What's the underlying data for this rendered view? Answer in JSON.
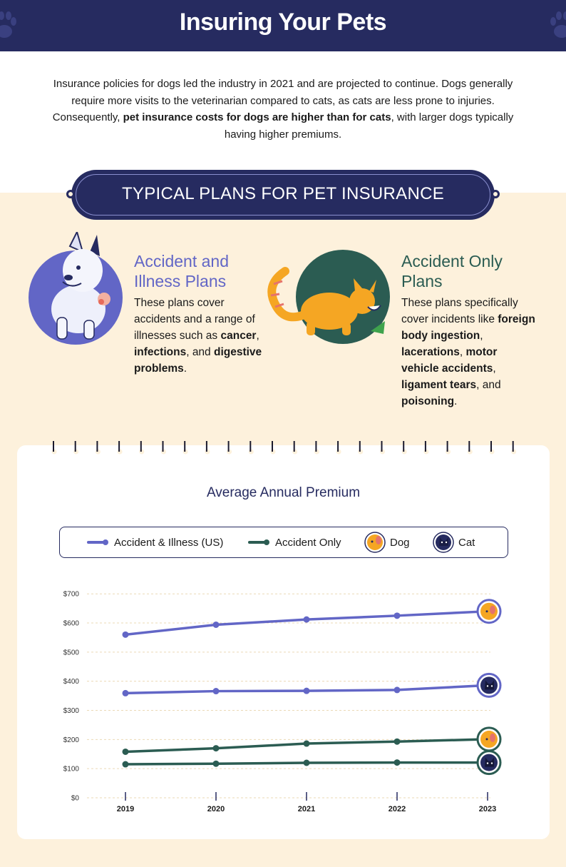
{
  "header": {
    "title": "Insuring Your Pets"
  },
  "intro": {
    "part1": "Insurance policies for dogs led the industry in 2021 and are projected to continue. Dogs generally require more visits to the veterinarian compared to cats, as cats are less prone to injuries. Consequently, ",
    "bold": "pet insurance costs for dogs are higher than for cats",
    "part2": ", with larger dogs typically having higher premiums."
  },
  "banner": {
    "title": "TYPICAL PLANS FOR PET INSURANCE"
  },
  "plans": {
    "accident_illness": {
      "title_line1": "Accident and",
      "title_line2": "Illness Plans",
      "desc_prefix": "These plans cover accidents and a range of illnesses such as ",
      "term1": "cancer",
      "sep1": ", ",
      "term2": "infections",
      "sep2": ", and ",
      "term3": "digestive problems",
      "suffix": "."
    },
    "accident_only": {
      "title_line1": "Accident Only",
      "title_line2": "Plans",
      "desc_prefix": "These plans specifically cover incidents like ",
      "term1": "foreign body ingestion",
      "sep1": ", ",
      "term2": "lacerations",
      "sep2": ", ",
      "term3": "motor vehicle accidents",
      "sep3": ", ",
      "term4": "ligament tears",
      "sep4": ", and ",
      "term5": "poisoning",
      "suffix": "."
    }
  },
  "legend": {
    "accident_illness": "Accident & Illness (US)",
    "accident_only": "Accident Only",
    "dog": "Dog",
    "cat": "Cat"
  },
  "colors": {
    "navy": "#262b60",
    "purple": "#6266c6",
    "teal": "#2b5c52",
    "cream": "#fdf1dc",
    "orange": "#f5a623"
  },
  "chart_data": {
    "type": "line",
    "title": "Average Annual Premium",
    "x": [
      "2019",
      "2020",
      "2021",
      "2022",
      "2023"
    ],
    "y_ticks": [
      "$0",
      "$100",
      "$200",
      "$300",
      "$400",
      "$500",
      "$600",
      "$700"
    ],
    "ylim": [
      0,
      700
    ],
    "grid": true,
    "legend_position": "top",
    "series": [
      {
        "name": "Accident & Illness (US)",
        "animal": "Dog",
        "values": [
          560,
          594,
          612,
          625,
          640
        ]
      },
      {
        "name": "Accident & Illness (US)",
        "animal": "Cat",
        "values": [
          359,
          366,
          367,
          370,
          386
        ]
      },
      {
        "name": "Accident Only",
        "animal": "Dog",
        "values": [
          158,
          170,
          186,
          193,
          201
        ]
      },
      {
        "name": "Accident Only",
        "animal": "Cat",
        "values": [
          115,
          117,
          120,
          121,
          121
        ]
      }
    ]
  }
}
